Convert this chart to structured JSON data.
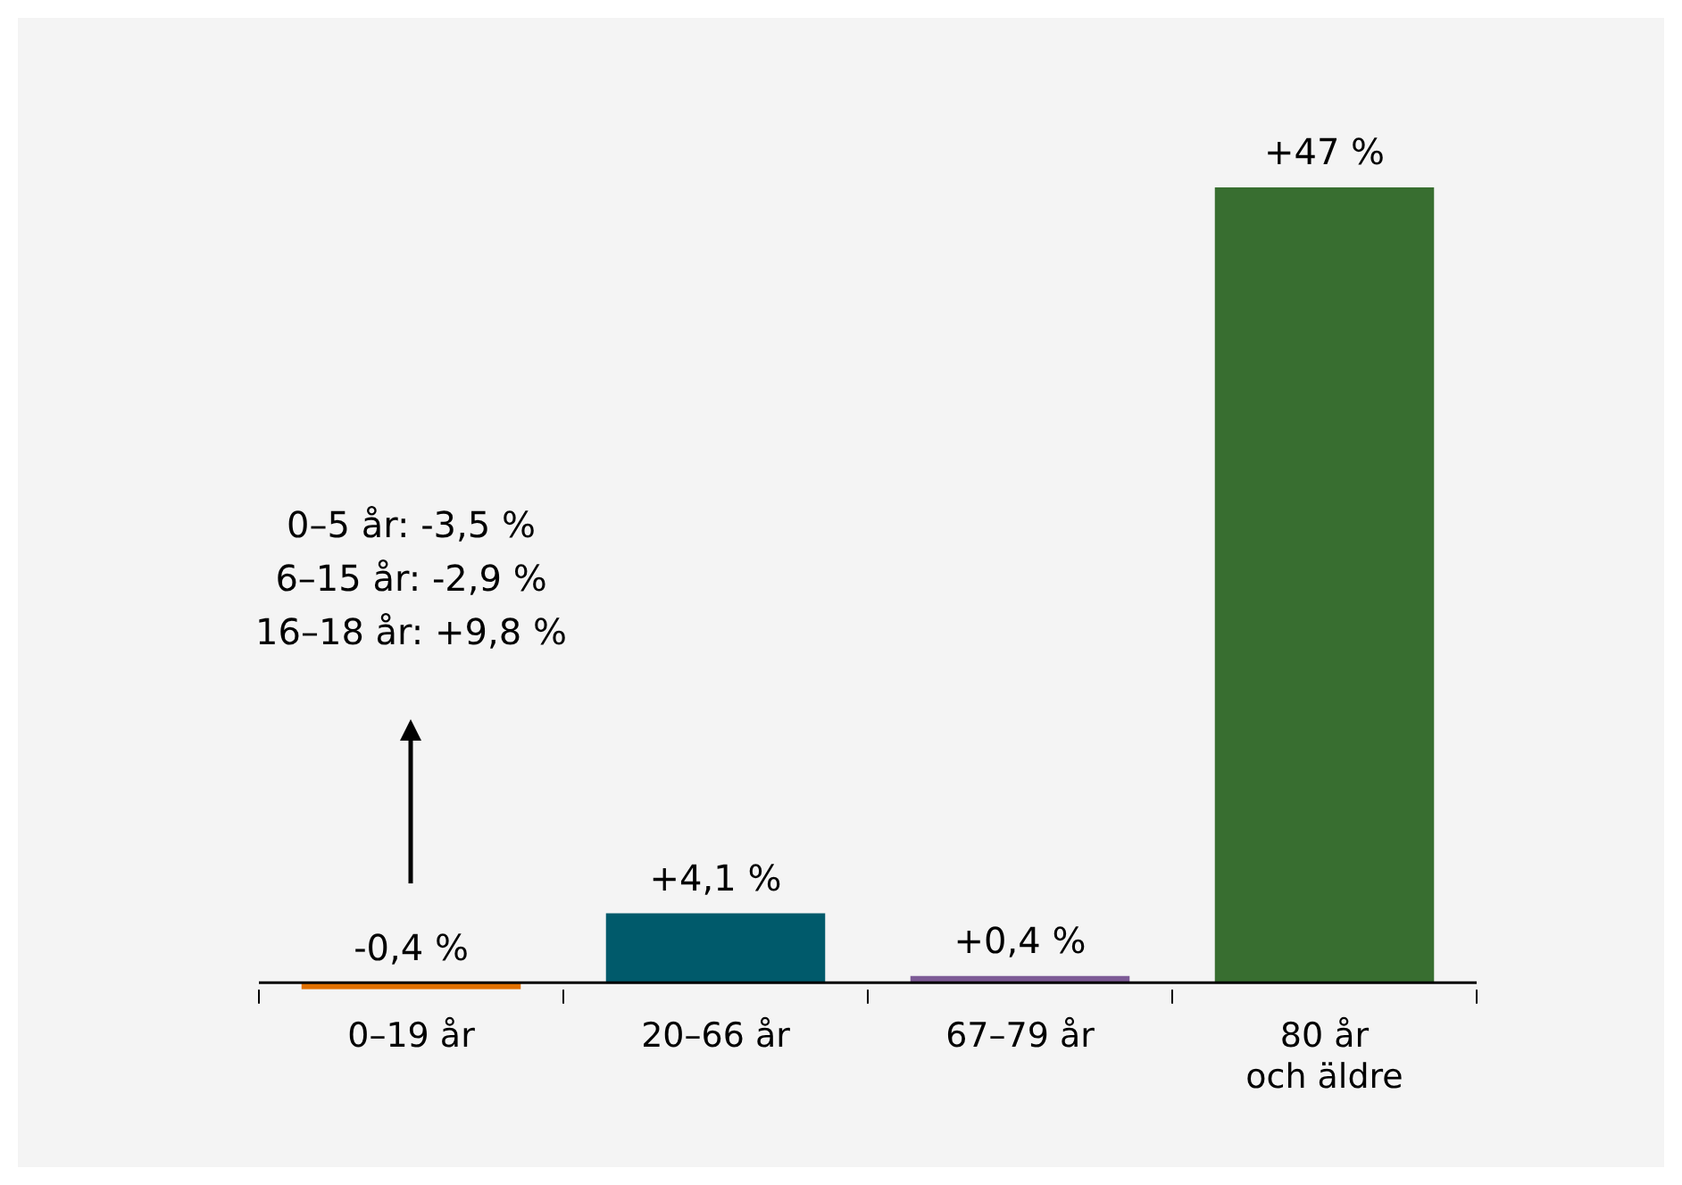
{
  "chart_data": {
    "type": "bar",
    "categories": [
      "0–19 år",
      "20–66 år",
      "67–79 år",
      "80 år\noch äldre"
    ],
    "values": [
      -0.4,
      4.1,
      0.4,
      47
    ],
    "colors": [
      "#e07000",
      "#005a6b",
      "#7d5b96",
      "#386e30"
    ],
    "value_labels": [
      "-0,4 %",
      "+4,1 %",
      "+0,4 %",
      "+47 %"
    ],
    "annotations": [
      "0–5 år: -3,5 %\n6–15 år: -2,9 %\n16–18 år: +9,8 %"
    ],
    "grid": false,
    "legend": false
  }
}
